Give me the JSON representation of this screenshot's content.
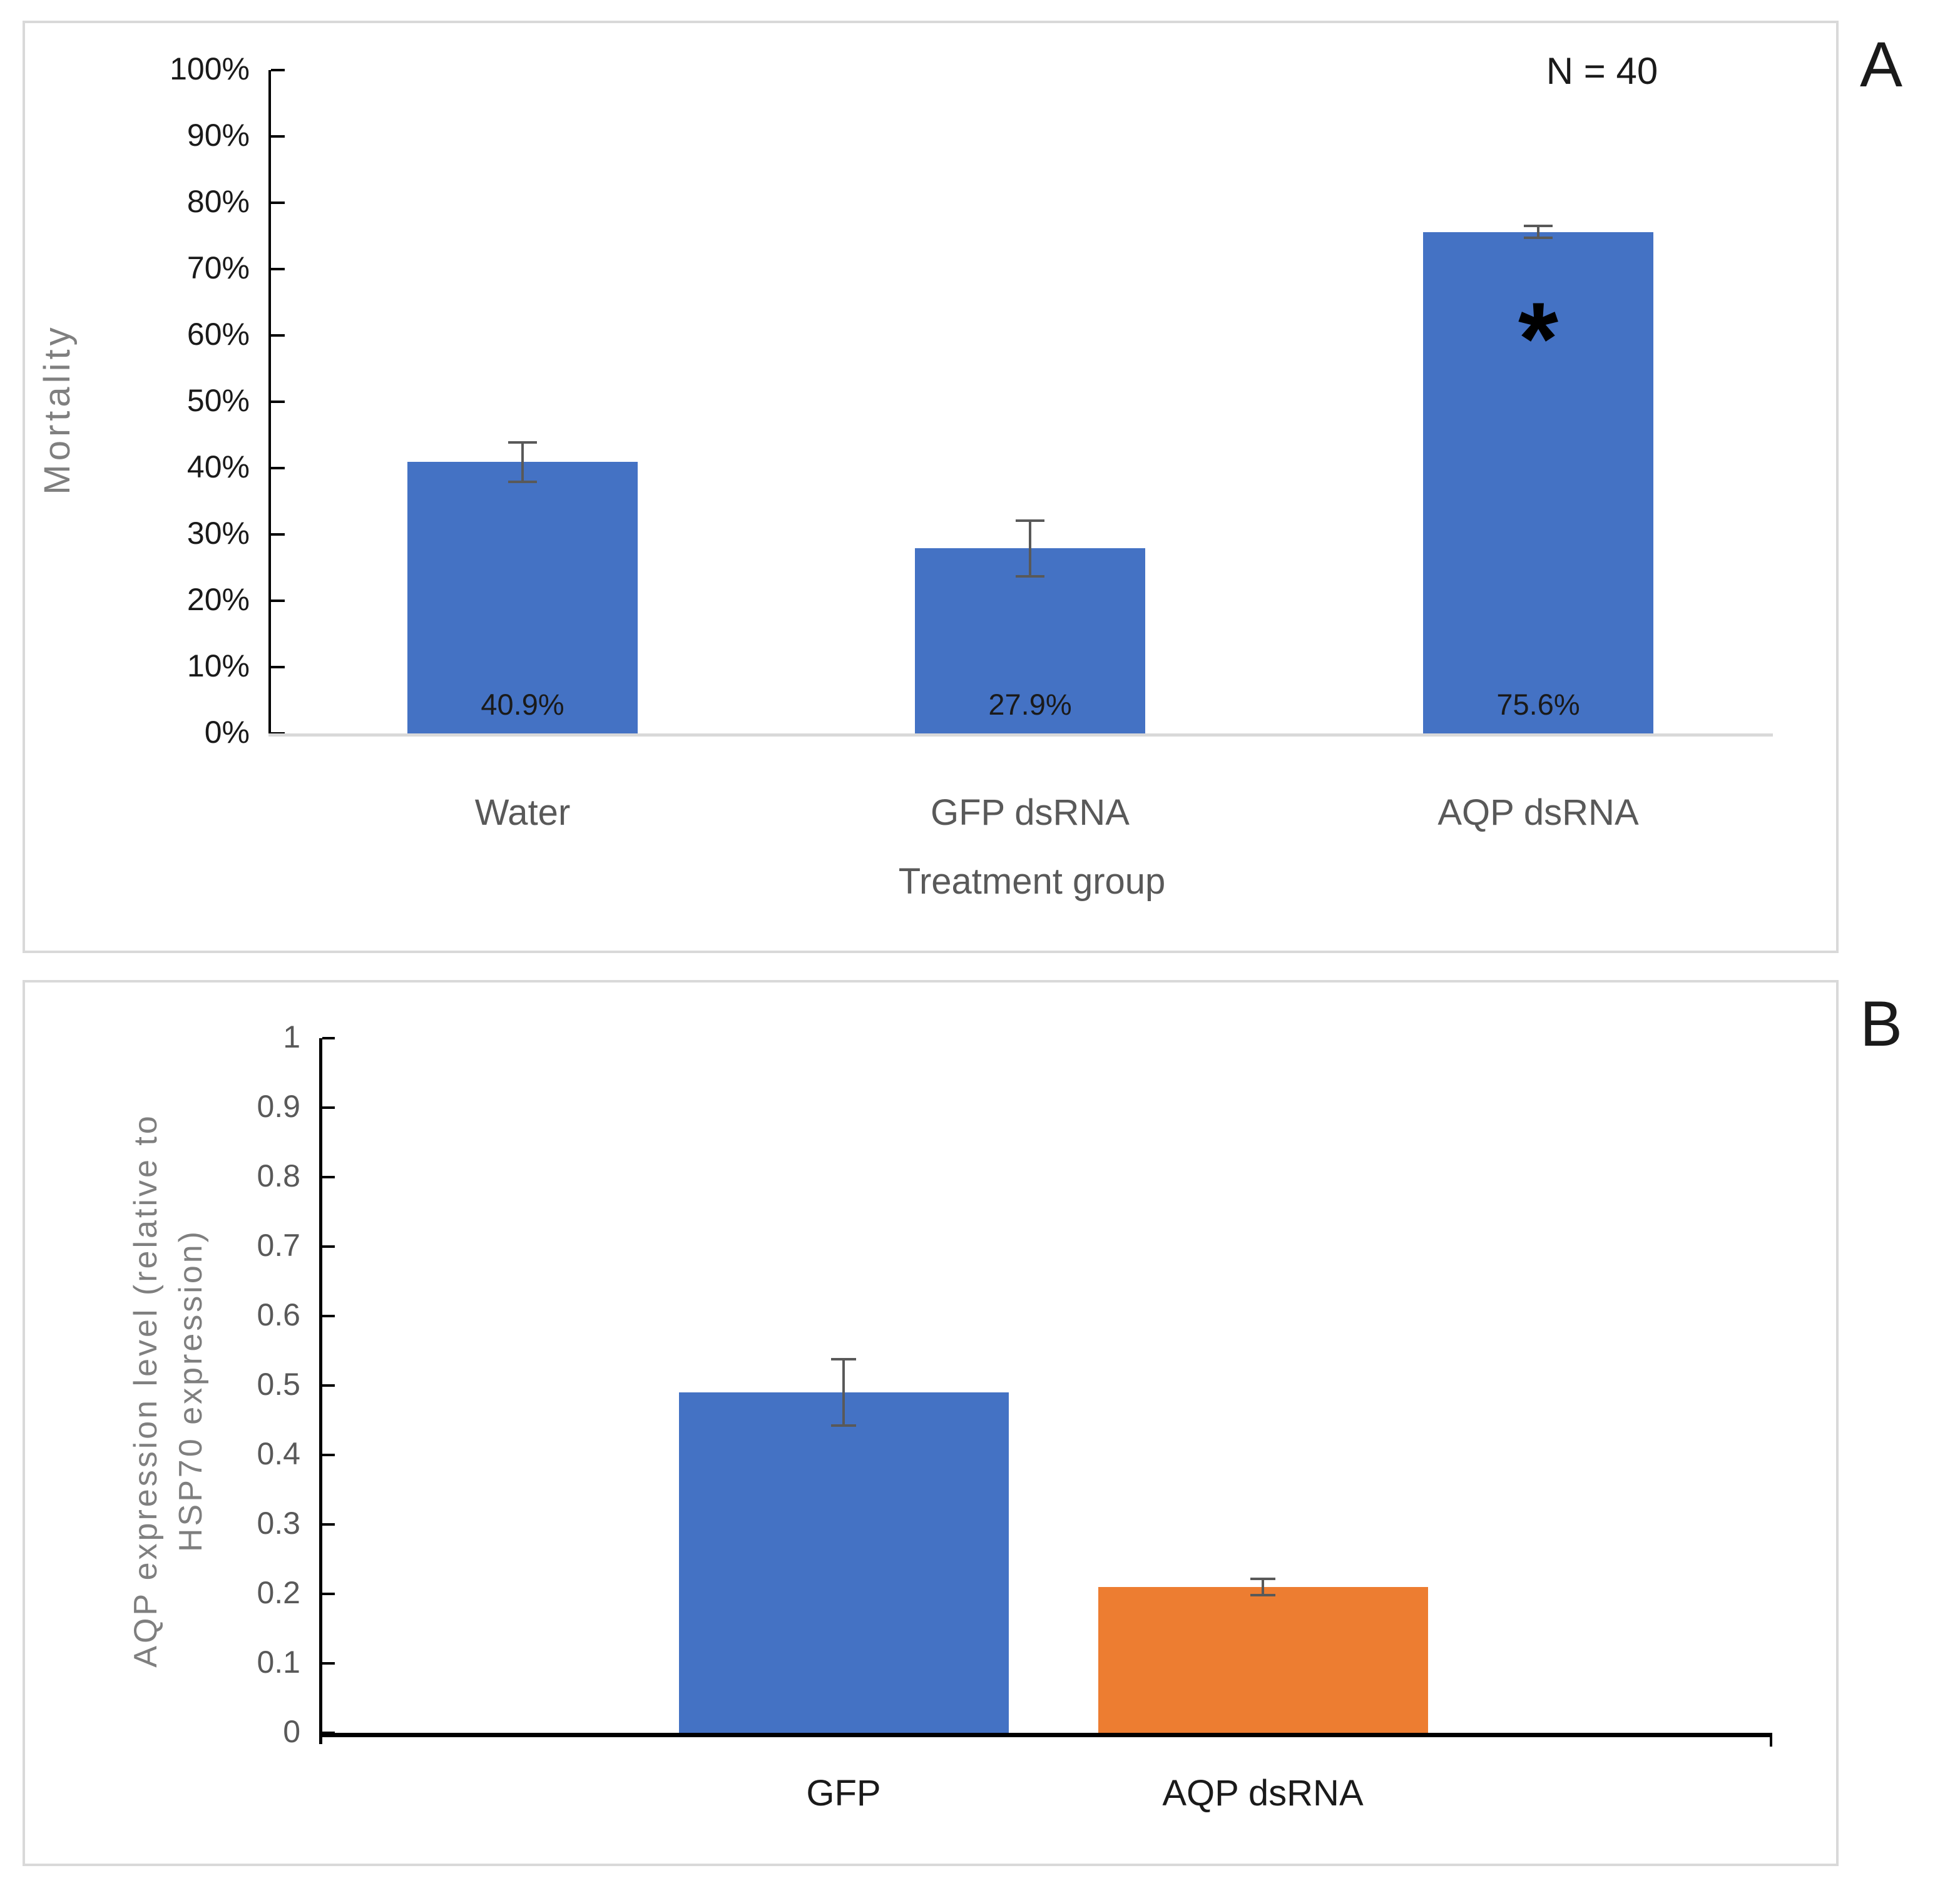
{
  "panel_a": {
    "letter": "A",
    "n_label": "N = 40",
    "y_title": "Mortality",
    "x_title": "Treatment group"
  },
  "panel_b": {
    "letter": "B",
    "y_title_line1": "AQP expression level (relative to",
    "y_title_line2": "HSP70 expression)"
  },
  "colors": {
    "bar_blue": "#4472C4",
    "bar_orange": "#ED7D31",
    "error_bar": "#595959",
    "panel_border": "#D9D9D9",
    "baseline_gray_a": "#D9D9D9",
    "axis_black": "#000000",
    "gray_axis_title": "#7F7F7F",
    "tick_text_a": "#1A1A1A",
    "tick_text_b": "#595959",
    "category_text_a": "#595959",
    "category_text_b": "#1A1A1A"
  },
  "chart_data": [
    {
      "type": "bar",
      "panel": "A",
      "title": "",
      "xlabel": "Treatment group",
      "ylabel": "Mortality",
      "categories": [
        "Water",
        "GFP dsRNA",
        "AQP dsRNA"
      ],
      "values": [
        40.9,
        27.9,
        75.6
      ],
      "value_labels": [
        "40.9%",
        "27.9%",
        "75.6%"
      ],
      "error_bars": [
        3.0,
        4.2,
        0.9
      ],
      "annotations": [
        {
          "category": "AQP dsRNA",
          "text": "*",
          "y": 62.3
        }
      ],
      "note": "N = 40",
      "ylim": [
        0,
        100
      ],
      "ytick_step": 10,
      "ytick_labels": [
        "0%",
        "10%",
        "20%",
        "30%",
        "40%",
        "50%",
        "60%",
        "70%",
        "80%",
        "90%",
        "100%"
      ],
      "grid": false,
      "legend": "none",
      "bar_color": "#4472C4"
    },
    {
      "type": "bar",
      "panel": "B",
      "title": "",
      "xlabel": "",
      "ylabel": "AQP expression level (relative to HSP70 expression)",
      "categories": [
        "GFP",
        "AQP dsRNA"
      ],
      "values": [
        0.49,
        0.21
      ],
      "value_labels": [],
      "error_bars": [
        0.048,
        0.012
      ],
      "annotations": [],
      "ylim": [
        0,
        1
      ],
      "ytick_step": 0.1,
      "ytick_labels": [
        "0",
        "0.1",
        "0.2",
        "0.3",
        "0.4",
        "0.5",
        "0.6",
        "0.7",
        "0.8",
        "0.9",
        "1"
      ],
      "grid": false,
      "legend": "none",
      "bar_colors": [
        "#4472C4",
        "#ED7D31"
      ]
    }
  ]
}
